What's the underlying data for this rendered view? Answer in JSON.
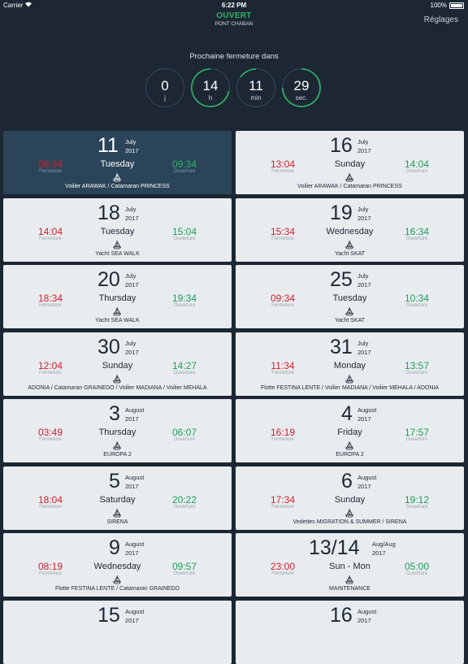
{
  "status_bar": {
    "carrier": "Carrier",
    "time": "6:22 PM",
    "battery": "100%",
    "wifi_icon": "wifi-icon",
    "battery_icon": "battery-icon"
  },
  "header": {
    "status": "OUVERT",
    "bridge_name": "PONT CHABAN",
    "settings_label": "Réglages",
    "status_color": "#2fb369"
  },
  "countdown": {
    "title": "Prochaine fermeture dans",
    "units": [
      {
        "value": "0",
        "label": "j"
      },
      {
        "value": "14",
        "label": "h"
      },
      {
        "value": "11",
        "label": "min"
      },
      {
        "value": "29",
        "label": "sec."
      }
    ]
  },
  "labels": {
    "closing": "Fermeture",
    "opening": "Ouverture"
  },
  "colors": {
    "closing": "#d0202f",
    "opening": "#1e9e57",
    "background": "#1c2733",
    "card": "#e8ecef",
    "card_active": "#2b4459"
  },
  "cards": [
    {
      "day": "11",
      "month": "July",
      "year": "2017",
      "weekday": "Tuesday",
      "close": "08:34",
      "open": "09:34",
      "vessels": "Voilier ARAWAK / Catamaran PRINCESS"
    },
    {
      "day": "16",
      "month": "July",
      "year": "2017",
      "weekday": "Sunday",
      "close": "13:04",
      "open": "14:04",
      "vessels": "Voilier ARAWAK / Catamaran PRINCESS"
    },
    {
      "day": "18",
      "month": "July",
      "year": "2017",
      "weekday": "Tuesday",
      "close": "14:04",
      "open": "15:04",
      "vessels": "Yacht SEA WALK"
    },
    {
      "day": "19",
      "month": "July",
      "year": "2017",
      "weekday": "Wednesday",
      "close": "15:34",
      "open": "16:34",
      "vessels": "Yacht SKAT"
    },
    {
      "day": "20",
      "month": "July",
      "year": "2017",
      "weekday": "Thursday",
      "close": "18:34",
      "open": "19:34",
      "vessels": "Yacht SEA WALK"
    },
    {
      "day": "25",
      "month": "July",
      "year": "2017",
      "weekday": "Tuesday",
      "close": "09:34",
      "open": "10:34",
      "vessels": "Yacht SKAT"
    },
    {
      "day": "30",
      "month": "July",
      "year": "2017",
      "weekday": "Sunday",
      "close": "12:04",
      "open": "14:27",
      "vessels": "ADONIA / Catamaran GRAINEDO / Voilier MADIANA / Voilier MEHALA"
    },
    {
      "day": "31",
      "month": "July",
      "year": "2017",
      "weekday": "Monday",
      "close": "11:34",
      "open": "13:57",
      "vessels": "Flotte FESTINA LENTE / Voilier MADIANA / Voilier MEHALA / ADONIA"
    },
    {
      "day": "3",
      "month": "August",
      "year": "2017",
      "weekday": "Thursday",
      "close": "03:49",
      "open": "06:07",
      "vessels": "EUROPA 2"
    },
    {
      "day": "4",
      "month": "August",
      "year": "2017",
      "weekday": "Friday",
      "close": "16:19",
      "open": "17:57",
      "vessels": "EUROPA 2"
    },
    {
      "day": "5",
      "month": "August",
      "year": "2017",
      "weekday": "Saturday",
      "close": "18:04",
      "open": "20:22",
      "vessels": "SIRENA"
    },
    {
      "day": "6",
      "month": "August",
      "year": "2017",
      "weekday": "Sunday",
      "close": "17:34",
      "open": "19:12",
      "vessels": "Vedettes MIGRATION & SUMMER / SIRENA"
    },
    {
      "day": "9",
      "month": "August",
      "year": "2017",
      "weekday": "Wednesday",
      "close": "08:19",
      "open": "09:57",
      "vessels": "Flotte FESTINA LENTE / Catamaran GRAINEDO"
    },
    {
      "day": "13/14",
      "month": "Aug/Aug",
      "year": "2017",
      "weekday": "Sun - Mon",
      "close": "23:00",
      "open": "05:00",
      "vessels": "MAINTENANCE"
    },
    {
      "day": "15",
      "month": "August",
      "year": "2017",
      "weekday": "",
      "close": "",
      "open": "",
      "vessels": ""
    },
    {
      "day": "16",
      "month": "August",
      "year": "2017",
      "weekday": "",
      "close": "",
      "open": "",
      "vessels": ""
    }
  ]
}
